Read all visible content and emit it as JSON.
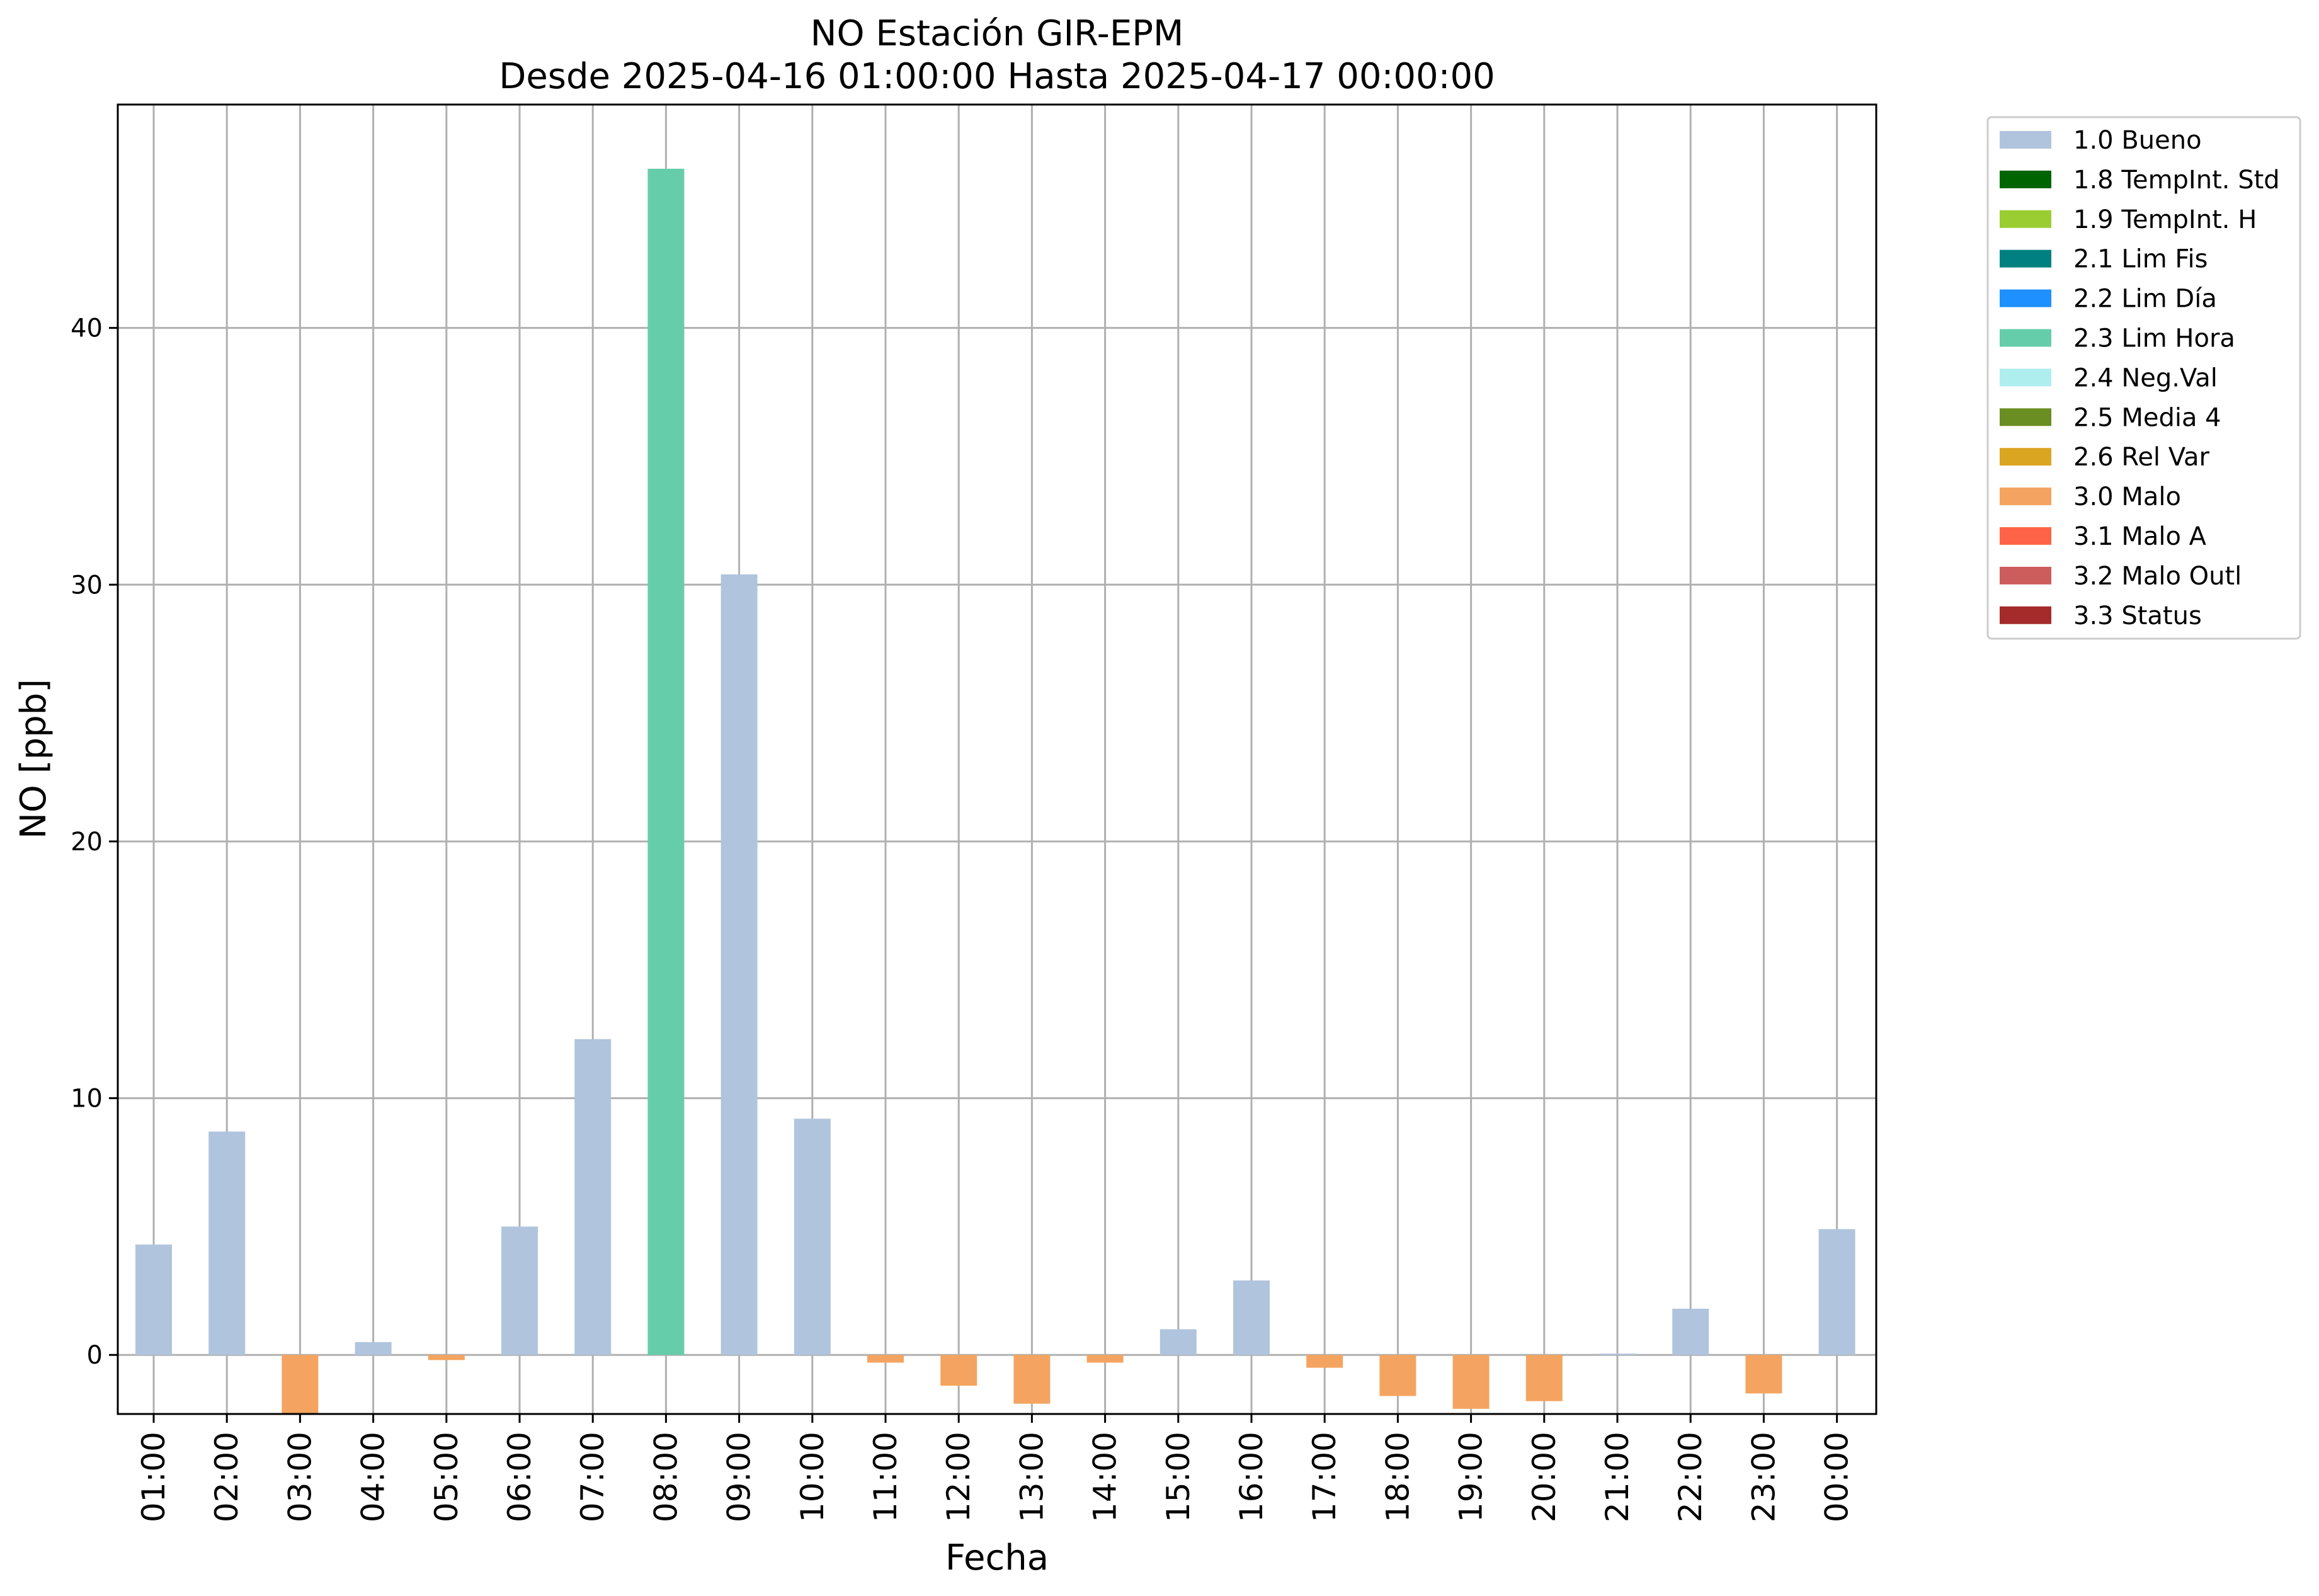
{
  "chart_data": {
    "type": "bar",
    "title": "NO Estación GIR-EPM",
    "subtitle": "Desde 2025-04-16 01:00:00 Hasta 2025-04-17 00:00:00",
    "xlabel": "Fecha",
    "ylabel": "NO [ppb]",
    "ylim": [
      -2.3,
      48.7
    ],
    "yticks": [
      0,
      10,
      20,
      30,
      40
    ],
    "grid": true,
    "legend_position": "outside-right",
    "categories": [
      "01:00",
      "02:00",
      "03:00",
      "04:00",
      "05:00",
      "06:00",
      "07:00",
      "08:00",
      "09:00",
      "10:00",
      "11:00",
      "12:00",
      "13:00",
      "14:00",
      "15:00",
      "16:00",
      "17:00",
      "18:00",
      "19:00",
      "20:00",
      "21:00",
      "22:00",
      "23:00",
      "00:00"
    ],
    "values": [
      4.3,
      8.7,
      -2.3,
      0.5,
      -0.2,
      5.0,
      12.3,
      46.2,
      30.4,
      9.2,
      -0.3,
      -1.2,
      -1.9,
      -0.3,
      1.0,
      2.9,
      -0.5,
      -1.6,
      -2.1,
      -1.8,
      0.05,
      1.8,
      -1.5,
      4.9
    ],
    "flags": [
      "1.0 Bueno",
      "1.0 Bueno",
      "3.0 Malo",
      "1.0 Bueno",
      "3.0 Malo",
      "1.0 Bueno",
      "1.0 Bueno",
      "2.3 Lim Hora",
      "1.0 Bueno",
      "1.0 Bueno",
      "3.0 Malo",
      "3.0 Malo",
      "3.0 Malo",
      "3.0 Malo",
      "1.0 Bueno",
      "1.0 Bueno",
      "3.0 Malo",
      "3.0 Malo",
      "3.0 Malo",
      "3.0 Malo",
      "1.0 Bueno",
      "1.0 Bueno",
      "3.0 Malo",
      "1.0 Bueno"
    ],
    "legend": [
      {
        "label": "1.0 Bueno",
        "color": "#b0c4de"
      },
      {
        "label": "1.8 TempInt. Std",
        "color": "#006400"
      },
      {
        "label": "1.9 TempInt. H",
        "color": "#9acd32"
      },
      {
        "label": "2.1 Lim Fis",
        "color": "#008080"
      },
      {
        "label": "2.2 Lim Día",
        "color": "#1e90ff"
      },
      {
        "label": "2.3 Lim Hora",
        "color": "#66cdaa"
      },
      {
        "label": "2.4 Neg.Val",
        "color": "#afeeee"
      },
      {
        "label": "2.5 Media 4",
        "color": "#6b8e23"
      },
      {
        "label": "2.6 Rel Var",
        "color": "#daa520"
      },
      {
        "label": "3.0 Malo",
        "color": "#f4a460"
      },
      {
        "label": "3.1 Malo A",
        "color": "#ff6347"
      },
      {
        "label": "3.2 Malo Outl",
        "color": "#cd5c5c"
      },
      {
        "label": "3.3 Status",
        "color": "#a52a2a"
      }
    ]
  }
}
